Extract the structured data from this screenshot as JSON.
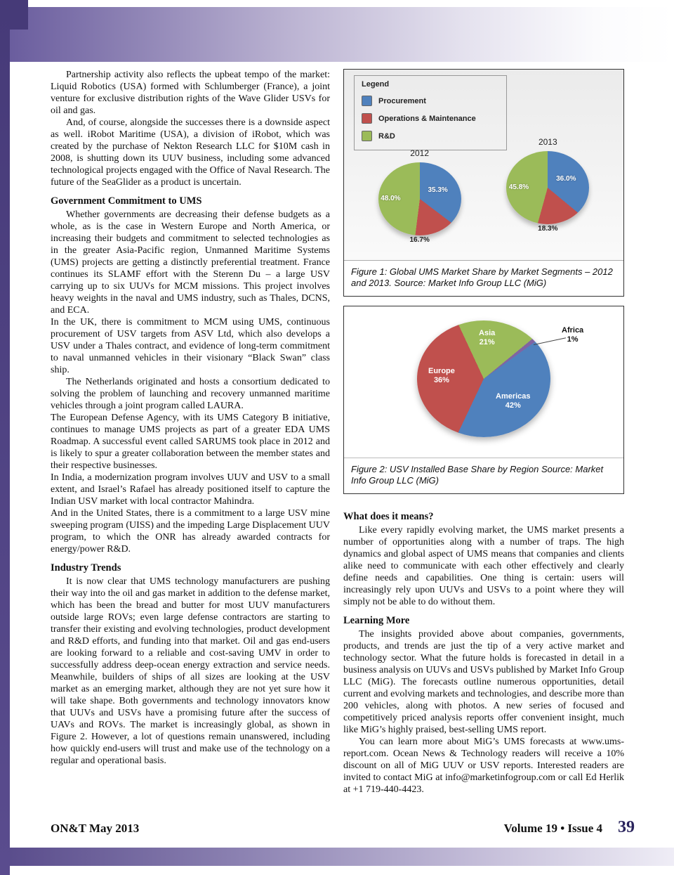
{
  "left_column": {
    "para_partnership": "Partnership activity also reflects the upbeat tempo of the market: Liquid Robotics (USA) formed with Schlumberger (France), a joint venture for exclusive distribution rights of the Wave Glider USVs for oil and gas.",
    "para_downside": "And, of course, alongside the successes there is a downside aspect as well.  iRobot Maritime (USA), a division of iRobot, which was created by the purchase of Nekton Research LLC for $10M cash in 2008, is shutting down its UUV business, including some advanced technological projects engaged with the Office of Naval Research.  The future of the SeaGlider as a product is uncertain.",
    "heading_government": "Government Commitment to UMS",
    "para_whether": "Whether governments are decreasing their defense budgets as a whole, as is the case in Western Europe and North America, or increasing their budgets and commitment to selected technologies as in the greater Asia-Pacific region, Unmanned Maritime Systems (UMS) projects are getting a distinctly preferential treatment.  France continues its SLAMF effort with the Sterenn Du – a large USV carrying up to six UUVs for MCM missions.  This project involves heavy weights in the naval and UMS industry, such as Thales, DCNS, and ECA.",
    "para_uk": "In the UK, there is commitment to MCM using UMS, continuous procurement of USV targets from ASV Ltd, which also develops a USV under a Thales contract, and evidence of long-term commitment to naval unmanned vehicles in their visionary “Black Swan” class ship.",
    "para_netherlands": "The Netherlands originated and hosts a consortium dedicated to solving the problem of launching and recovery unmanned maritime vehicles through a joint program called LAURA.",
    "para_eda": "The European Defense Agency, with its UMS Category B initiative, continues to manage UMS projects as part of a greater EDA UMS Roadmap.  A successful event called SARUMS took place in 2012 and is likely to spur a greater collaboration between the member states and their respective businesses.",
    "para_india": "In India, a modernization program involves UUV and USV to a small extent, and Israel’s Rafael has already positioned itself to capture the Indian USV market with local contractor Mahindra.",
    "para_us": "And in the United States, there is a commitment to a large USV mine sweeping program (UISS) and the impeding Large Displacement UUV program, to which the ONR has already awarded contracts for energy/power R&D.",
    "heading_trends": "Industry Trends",
    "para_trends": "It is now clear that UMS technology manufacturers are pushing their way into the oil and gas market in addition to the defense market, which has been the bread and butter for most UUV manufacturers outside large ROVs; even large defense contractors are starting to transfer their existing and evolving technologies, product development and R&D efforts, and funding into that market.  Oil and gas end-users are looking forward to a reliable and cost-saving UMV in order to successfully address deep-ocean energy extraction and service needs.  Meanwhile, builders of ships of all sizes are looking at the USV market as an emerging market, although they are not yet sure how it will take shape.  Both governments and technology innovators know that UUVs and USVs have a promising future after the success of UAVs and ROVs.  The market is increasingly global, as shown in Figure 2.  However, a lot of questions remain unanswered, including how quickly end-users will trust and make use of the technology on a regular and operational basis."
  },
  "right_column": {
    "heading_means": "What does it means?",
    "para_means": "Like every rapidly evolving market, the UMS market presents a number of opportunities along with a number of traps.  The high dynamics and global aspect of UMS means that companies and clients alike need to communicate with each other effectively and clearly define needs and capabilities.  One thing is certain: users will increasingly rely upon UUVs and USVs to a point where they will simply not be able to do without them.",
    "heading_learning": "Learning More",
    "para_learning1": "The insights provided above about companies, governments, products, and trends are just the tip of a very active market and technology sector.  What the future holds is forecasted in detail in a business analysis on UUVs and USVs published by Market Info Group LLC (MiG).  The forecasts outline numerous opportunities, detail current and evolving markets and technologies, and describe more than 200 vehicles, along with photos.  A new series of focused and competitively priced analysis reports offer convenient insight, much like MiG’s highly praised, best-selling UMS report.",
    "para_learning2": "You can learn more about MiG’s UMS forecasts at www.ums-report.com.  Ocean News & Technology readers will receive a 10% discount on all of MiG UUV or USV reports.  Interested readers are invited to contact MiG at info@marketinfogroup.com or call Ed Herlik at +1 719-440-4423."
  },
  "figures": {
    "fig1_caption": "Figure 1: Global UMS Market Share by Market Segments – 2012 and 2013.  Source: Market Info Group LLC (MiG)",
    "fig2_caption": "Figure 2: USV Installed Base Share by Region Source: Market Info Group LLC (MiG)"
  },
  "chart_data": [
    {
      "type": "pie",
      "title": "Global UMS Market Share by Market Segments – 2012 and 2013",
      "source": "Market Info Group LLC (MiG)",
      "legend_title": "Legend",
      "legend": [
        "Procurement",
        "Operations & Maintenance",
        "R&D"
      ],
      "colors": [
        "#4f81bd",
        "#c0504d",
        "#9bbb59"
      ],
      "legend_position": "top-left",
      "pies": [
        {
          "label": "2012",
          "values": [
            35.3,
            16.7,
            48.0
          ],
          "value_labels": [
            "35.3%",
            "16.7%",
            "48.0%"
          ]
        },
        {
          "label": "2013",
          "values": [
            36.0,
            18.3,
            45.8
          ],
          "value_labels": [
            "36.0%",
            "18.3%",
            "45.8%"
          ]
        }
      ]
    },
    {
      "type": "pie",
      "title": "USV Installed Base Share by Region",
      "source": "Market Info Group LLC (MiG)",
      "slices": [
        {
          "name": "Asia",
          "value": 21,
          "pct_label": "21%",
          "color": "#9bbb59"
        },
        {
          "name": "Africa",
          "value": 1,
          "pct_label": "1%",
          "color": "#8064a2"
        },
        {
          "name": "Americas",
          "value": 42,
          "pct_label": "42%",
          "color": "#4f81bd"
        },
        {
          "name": "Europe",
          "value": 36,
          "pct_label": "36%",
          "color": "#c0504d"
        }
      ]
    }
  ],
  "footer": {
    "left": "ON&T May 2013",
    "volume": "Volume 19 • Issue 4",
    "page_number": "39"
  }
}
